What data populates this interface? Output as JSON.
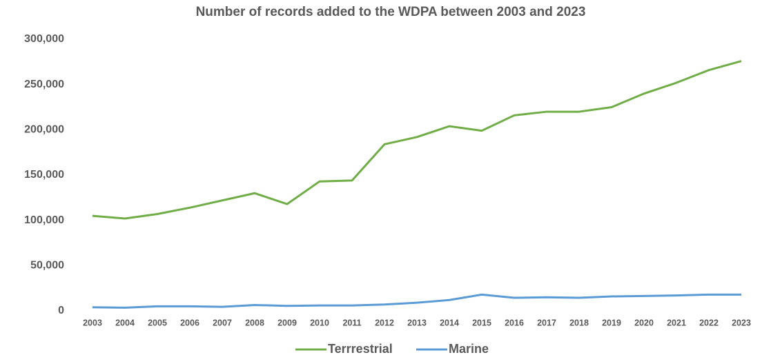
{
  "chart_data": {
    "type": "line",
    "title": "Number of records added to the WDPA between 2003 and 2023",
    "categories": [
      "2003",
      "2004",
      "2005",
      "2006",
      "2007",
      "2008",
      "2009",
      "2010",
      "2011",
      "2012",
      "2013",
      "2014",
      "2015",
      "2016",
      "2017",
      "2018",
      "2019",
      "2020",
      "2021",
      "2022",
      "2023"
    ],
    "series": [
      {
        "name": "Terrrestrial",
        "color": "#70ad47",
        "values": [
          105000,
          102000,
          107000,
          114000,
          122000,
          130000,
          118000,
          143000,
          144000,
          184000,
          192000,
          204000,
          199000,
          216000,
          220000,
          220000,
          225000,
          240000,
          252000,
          266000,
          276000
        ]
      },
      {
        "name": "Marine",
        "color": "#5b9bd5",
        "values": [
          4000,
          3500,
          5000,
          5000,
          4500,
          6500,
          5500,
          6000,
          6000,
          7000,
          9000,
          12000,
          18000,
          14500,
          15000,
          14500,
          16000,
          16500,
          17000,
          18000,
          18000
        ]
      }
    ],
    "ylim": [
      0,
      300000
    ],
    "yticks": [
      0,
      {
        "value": 50000,
        "label": "50,000"
      },
      {
        "value": 100000,
        "label": "100,000"
      },
      {
        "value": 150000,
        "label": "150,000"
      },
      {
        "value": 200000,
        "label": "200,000"
      },
      {
        "value": 250000,
        "label": "250,000"
      },
      {
        "value": 300000,
        "label": "300,000"
      }
    ],
    "grid": false,
    "legend": "bottom"
  }
}
